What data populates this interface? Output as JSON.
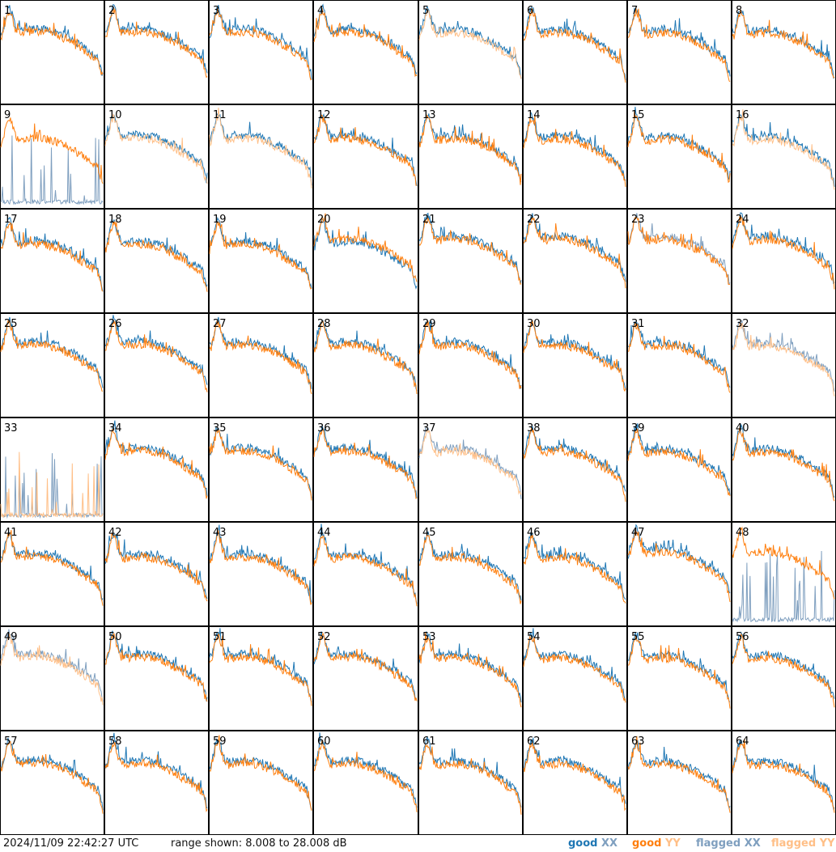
{
  "footer": {
    "timestamp": "2024/11/09 22:42:27 UTC",
    "range_text": "range shown: 8.008 to 28.008 dB"
  },
  "legend": [
    {
      "key": "good_xx",
      "word": "good",
      "pol": "XX",
      "color": "#1f77b4"
    },
    {
      "key": "good_yy",
      "word": "good",
      "pol": "YY",
      "color": "#ff7f0e"
    },
    {
      "key": "flagged_xx",
      "word": "flagged",
      "pol": "XX",
      "color": "#7f9fbf"
    },
    {
      "key": "flagged_yy",
      "word": "flagged",
      "pol": "YY",
      "color": "#ffbf87"
    }
  ],
  "chart_data": {
    "type": "line",
    "grid": "8x8 small multiples",
    "ylim": [
      8.008,
      28.008
    ],
    "y_unit": "dB",
    "panels": [
      {
        "id": "1",
        "xx": "good",
        "yy": "good"
      },
      {
        "id": "2",
        "xx": "good",
        "yy": "good"
      },
      {
        "id": "3",
        "xx": "good",
        "yy": "good"
      },
      {
        "id": "4",
        "xx": "good",
        "yy": "good"
      },
      {
        "id": "5",
        "xx": "good",
        "yy": "flagged"
      },
      {
        "id": "6",
        "xx": "good",
        "yy": "good"
      },
      {
        "id": "7",
        "xx": "good",
        "yy": "good"
      },
      {
        "id": "8",
        "xx": "good",
        "yy": "good"
      },
      {
        "id": "9",
        "xx": "flagged",
        "yy": "good"
      },
      {
        "id": "10",
        "xx": "good",
        "yy": "flagged"
      },
      {
        "id": "11",
        "xx": "good",
        "yy": "flagged"
      },
      {
        "id": "12",
        "xx": "good",
        "yy": "good"
      },
      {
        "id": "13",
        "xx": "good",
        "yy": "good"
      },
      {
        "id": "14",
        "xx": "good",
        "yy": "good"
      },
      {
        "id": "15",
        "xx": "good",
        "yy": "good"
      },
      {
        "id": "16",
        "xx": "good",
        "yy": "flagged"
      },
      {
        "id": "17",
        "xx": "good",
        "yy": "good"
      },
      {
        "id": "18",
        "xx": "good",
        "yy": "good"
      },
      {
        "id": "19",
        "xx": "good",
        "yy": "good"
      },
      {
        "id": "20",
        "xx": "good",
        "yy": "good"
      },
      {
        "id": "21",
        "xx": "good",
        "yy": "good"
      },
      {
        "id": "22",
        "xx": "good",
        "yy": "good"
      },
      {
        "id": "23",
        "xx": "flagged",
        "yy": "good"
      },
      {
        "id": "24",
        "xx": "good",
        "yy": "good"
      },
      {
        "id": "25",
        "xx": "good",
        "yy": "good"
      },
      {
        "id": "26",
        "xx": "good",
        "yy": "good"
      },
      {
        "id": "27",
        "xx": "good",
        "yy": "good"
      },
      {
        "id": "28",
        "xx": "good",
        "yy": "good"
      },
      {
        "id": "29",
        "xx": "good",
        "yy": "good"
      },
      {
        "id": "30",
        "xx": "good",
        "yy": "good"
      },
      {
        "id": "31",
        "xx": "good",
        "yy": "good"
      },
      {
        "id": "32",
        "xx": "flagged",
        "yy": "flagged"
      },
      {
        "id": "33",
        "xx": "flagged",
        "yy": "flagged"
      },
      {
        "id": "34",
        "xx": "good",
        "yy": "good"
      },
      {
        "id": "35",
        "xx": "good",
        "yy": "good"
      },
      {
        "id": "36",
        "xx": "good",
        "yy": "good"
      },
      {
        "id": "37",
        "xx": "flagged",
        "yy": "flagged"
      },
      {
        "id": "38",
        "xx": "good",
        "yy": "good"
      },
      {
        "id": "39",
        "xx": "good",
        "yy": "good"
      },
      {
        "id": "40",
        "xx": "good",
        "yy": "good"
      },
      {
        "id": "41",
        "xx": "good",
        "yy": "good"
      },
      {
        "id": "42",
        "xx": "good",
        "yy": "good"
      },
      {
        "id": "43",
        "xx": "good",
        "yy": "good"
      },
      {
        "id": "44",
        "xx": "good",
        "yy": "good"
      },
      {
        "id": "45",
        "xx": "good",
        "yy": "good"
      },
      {
        "id": "46",
        "xx": "good",
        "yy": "good"
      },
      {
        "id": "47",
        "xx": "good",
        "yy": "good"
      },
      {
        "id": "48",
        "xx": "flagged",
        "yy": "good"
      },
      {
        "id": "49",
        "xx": "flagged",
        "yy": "flagged"
      },
      {
        "id": "50",
        "xx": "good",
        "yy": "good"
      },
      {
        "id": "51",
        "xx": "good",
        "yy": "good"
      },
      {
        "id": "52",
        "xx": "good",
        "yy": "good"
      },
      {
        "id": "53",
        "xx": "good",
        "yy": "good"
      },
      {
        "id": "54",
        "xx": "good",
        "yy": "good"
      },
      {
        "id": "55",
        "xx": "good",
        "yy": "good"
      },
      {
        "id": "56",
        "xx": "good",
        "yy": "good"
      },
      {
        "id": "57",
        "xx": "good",
        "yy": "good"
      },
      {
        "id": "58",
        "xx": "good",
        "yy": "good"
      },
      {
        "id": "59",
        "xx": "good",
        "yy": "good"
      },
      {
        "id": "60",
        "xx": "good",
        "yy": "good"
      },
      {
        "id": "61",
        "xx": "good",
        "yy": "good"
      },
      {
        "id": "62",
        "xx": "good",
        "yy": "good"
      },
      {
        "id": "63",
        "xx": "good",
        "yy": "good"
      },
      {
        "id": "64",
        "xx": "good",
        "yy": "good"
      }
    ]
  }
}
